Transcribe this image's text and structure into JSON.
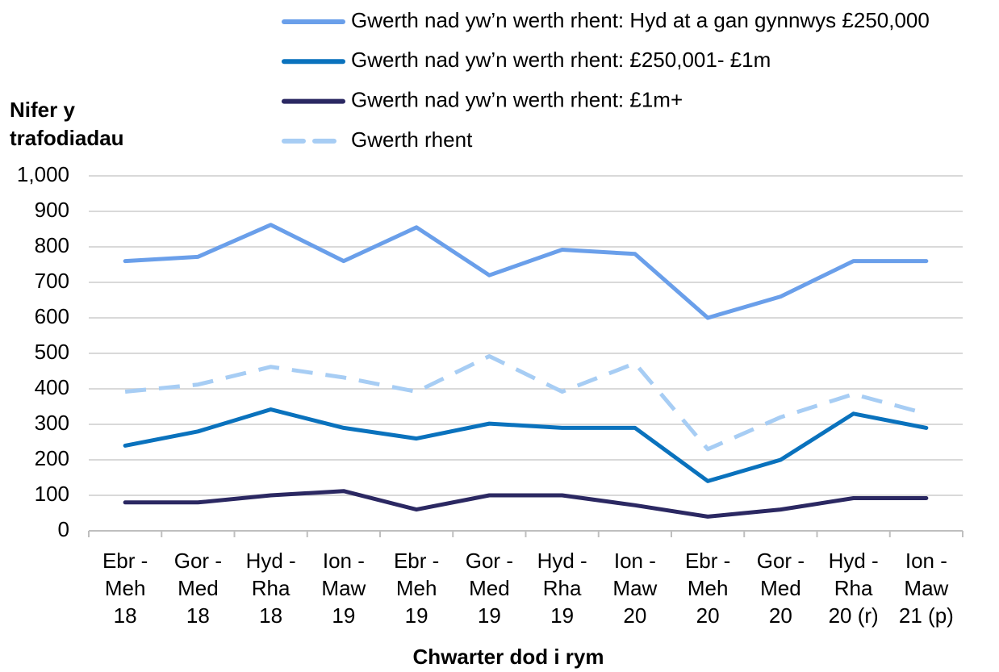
{
  "chart_data": {
    "type": "line",
    "y_label": [
      "Nifer y",
      "trafodiadau"
    ],
    "x_label": "Chwarter dod i rym",
    "categories": [
      [
        "Ebr -",
        "Meh",
        "18"
      ],
      [
        "Gor -",
        "Med",
        "18"
      ],
      [
        "Hyd -",
        "Rha",
        "18"
      ],
      [
        "Ion -",
        "Maw",
        "19"
      ],
      [
        "Ebr -",
        "Meh",
        "19"
      ],
      [
        "Gor -",
        "Med",
        "19"
      ],
      [
        "Hyd -",
        "Rha",
        "19"
      ],
      [
        "Ion -",
        "Maw",
        "20"
      ],
      [
        "Ebr -",
        "Meh",
        "20"
      ],
      [
        "Gor -",
        "Med",
        "20"
      ],
      [
        "Hyd -",
        "Rha",
        "20 (r)"
      ],
      [
        "Ion -",
        "Maw",
        "21 (p)"
      ]
    ],
    "series": [
      {
        "name": "Gwerth nad yw’n werth rhent: Hyd at a gan gynnwys £250,000",
        "color": "#6a9fea",
        "dash": false,
        "values": [
          760,
          772,
          862,
          760,
          855,
          720,
          792,
          780,
          600,
          660,
          760,
          760
        ]
      },
      {
        "name": "Gwerth nad yw’n werth rhent: £250,001- £1m",
        "color": "#0a72bd",
        "dash": false,
        "values": [
          240,
          280,
          342,
          290,
          260,
          302,
          290,
          290,
          140,
          200,
          330,
          290
        ]
      },
      {
        "name": "Gwerth nad yw’n werth rhent: £1m+",
        "color": "#2b2862",
        "dash": false,
        "values": [
          80,
          80,
          100,
          112,
          60,
          100,
          100,
          72,
          40,
          60,
          92,
          92
        ]
      },
      {
        "name": "Gwerth rhent",
        "color": "#a7cdf4",
        "dash": true,
        "values": [
          392,
          412,
          462,
          432,
          392,
          492,
          392,
          472,
          230,
          320,
          385,
          330
        ]
      }
    ],
    "ylim": [
      0,
      1000
    ],
    "yticks": [
      0,
      100,
      200,
      300,
      400,
      500,
      600,
      700,
      800,
      900,
      {
        "value": 1000,
        "label": "1,000"
      }
    ],
    "grid": true
  }
}
